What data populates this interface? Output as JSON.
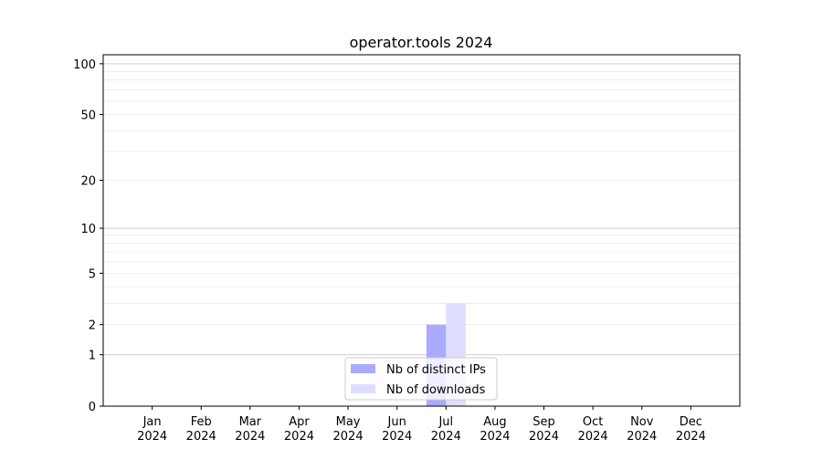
{
  "chart_data": {
    "type": "bar",
    "title": "operator.tools 2024",
    "xlabel": "",
    "ylabel": "",
    "categories": [
      "Jan\n2024",
      "Feb\n2024",
      "Mar\n2024",
      "Apr\n2024",
      "May\n2024",
      "Jun\n2024",
      "Jul\n2024",
      "Aug\n2024",
      "Sep\n2024",
      "Oct\n2024",
      "Nov\n2024",
      "Dec\n2024"
    ],
    "y_scale": "log10(1+y)",
    "yticks": [
      0,
      1,
      2,
      5,
      10,
      20,
      50,
      100
    ],
    "ylim": [
      0,
      113
    ],
    "grid": true,
    "legend_position": "lower-center",
    "series": [
      {
        "name": "Nb of distinct IPs",
        "color": "#aaaaff",
        "values": [
          0,
          0,
          0,
          0,
          0,
          0,
          2,
          0,
          0,
          0,
          0,
          0
        ]
      },
      {
        "name": "Nb of downloads",
        "color": "#ddddff",
        "values": [
          0,
          0,
          0,
          0,
          0,
          0,
          3,
          0,
          0,
          0,
          0,
          0
        ]
      }
    ]
  }
}
